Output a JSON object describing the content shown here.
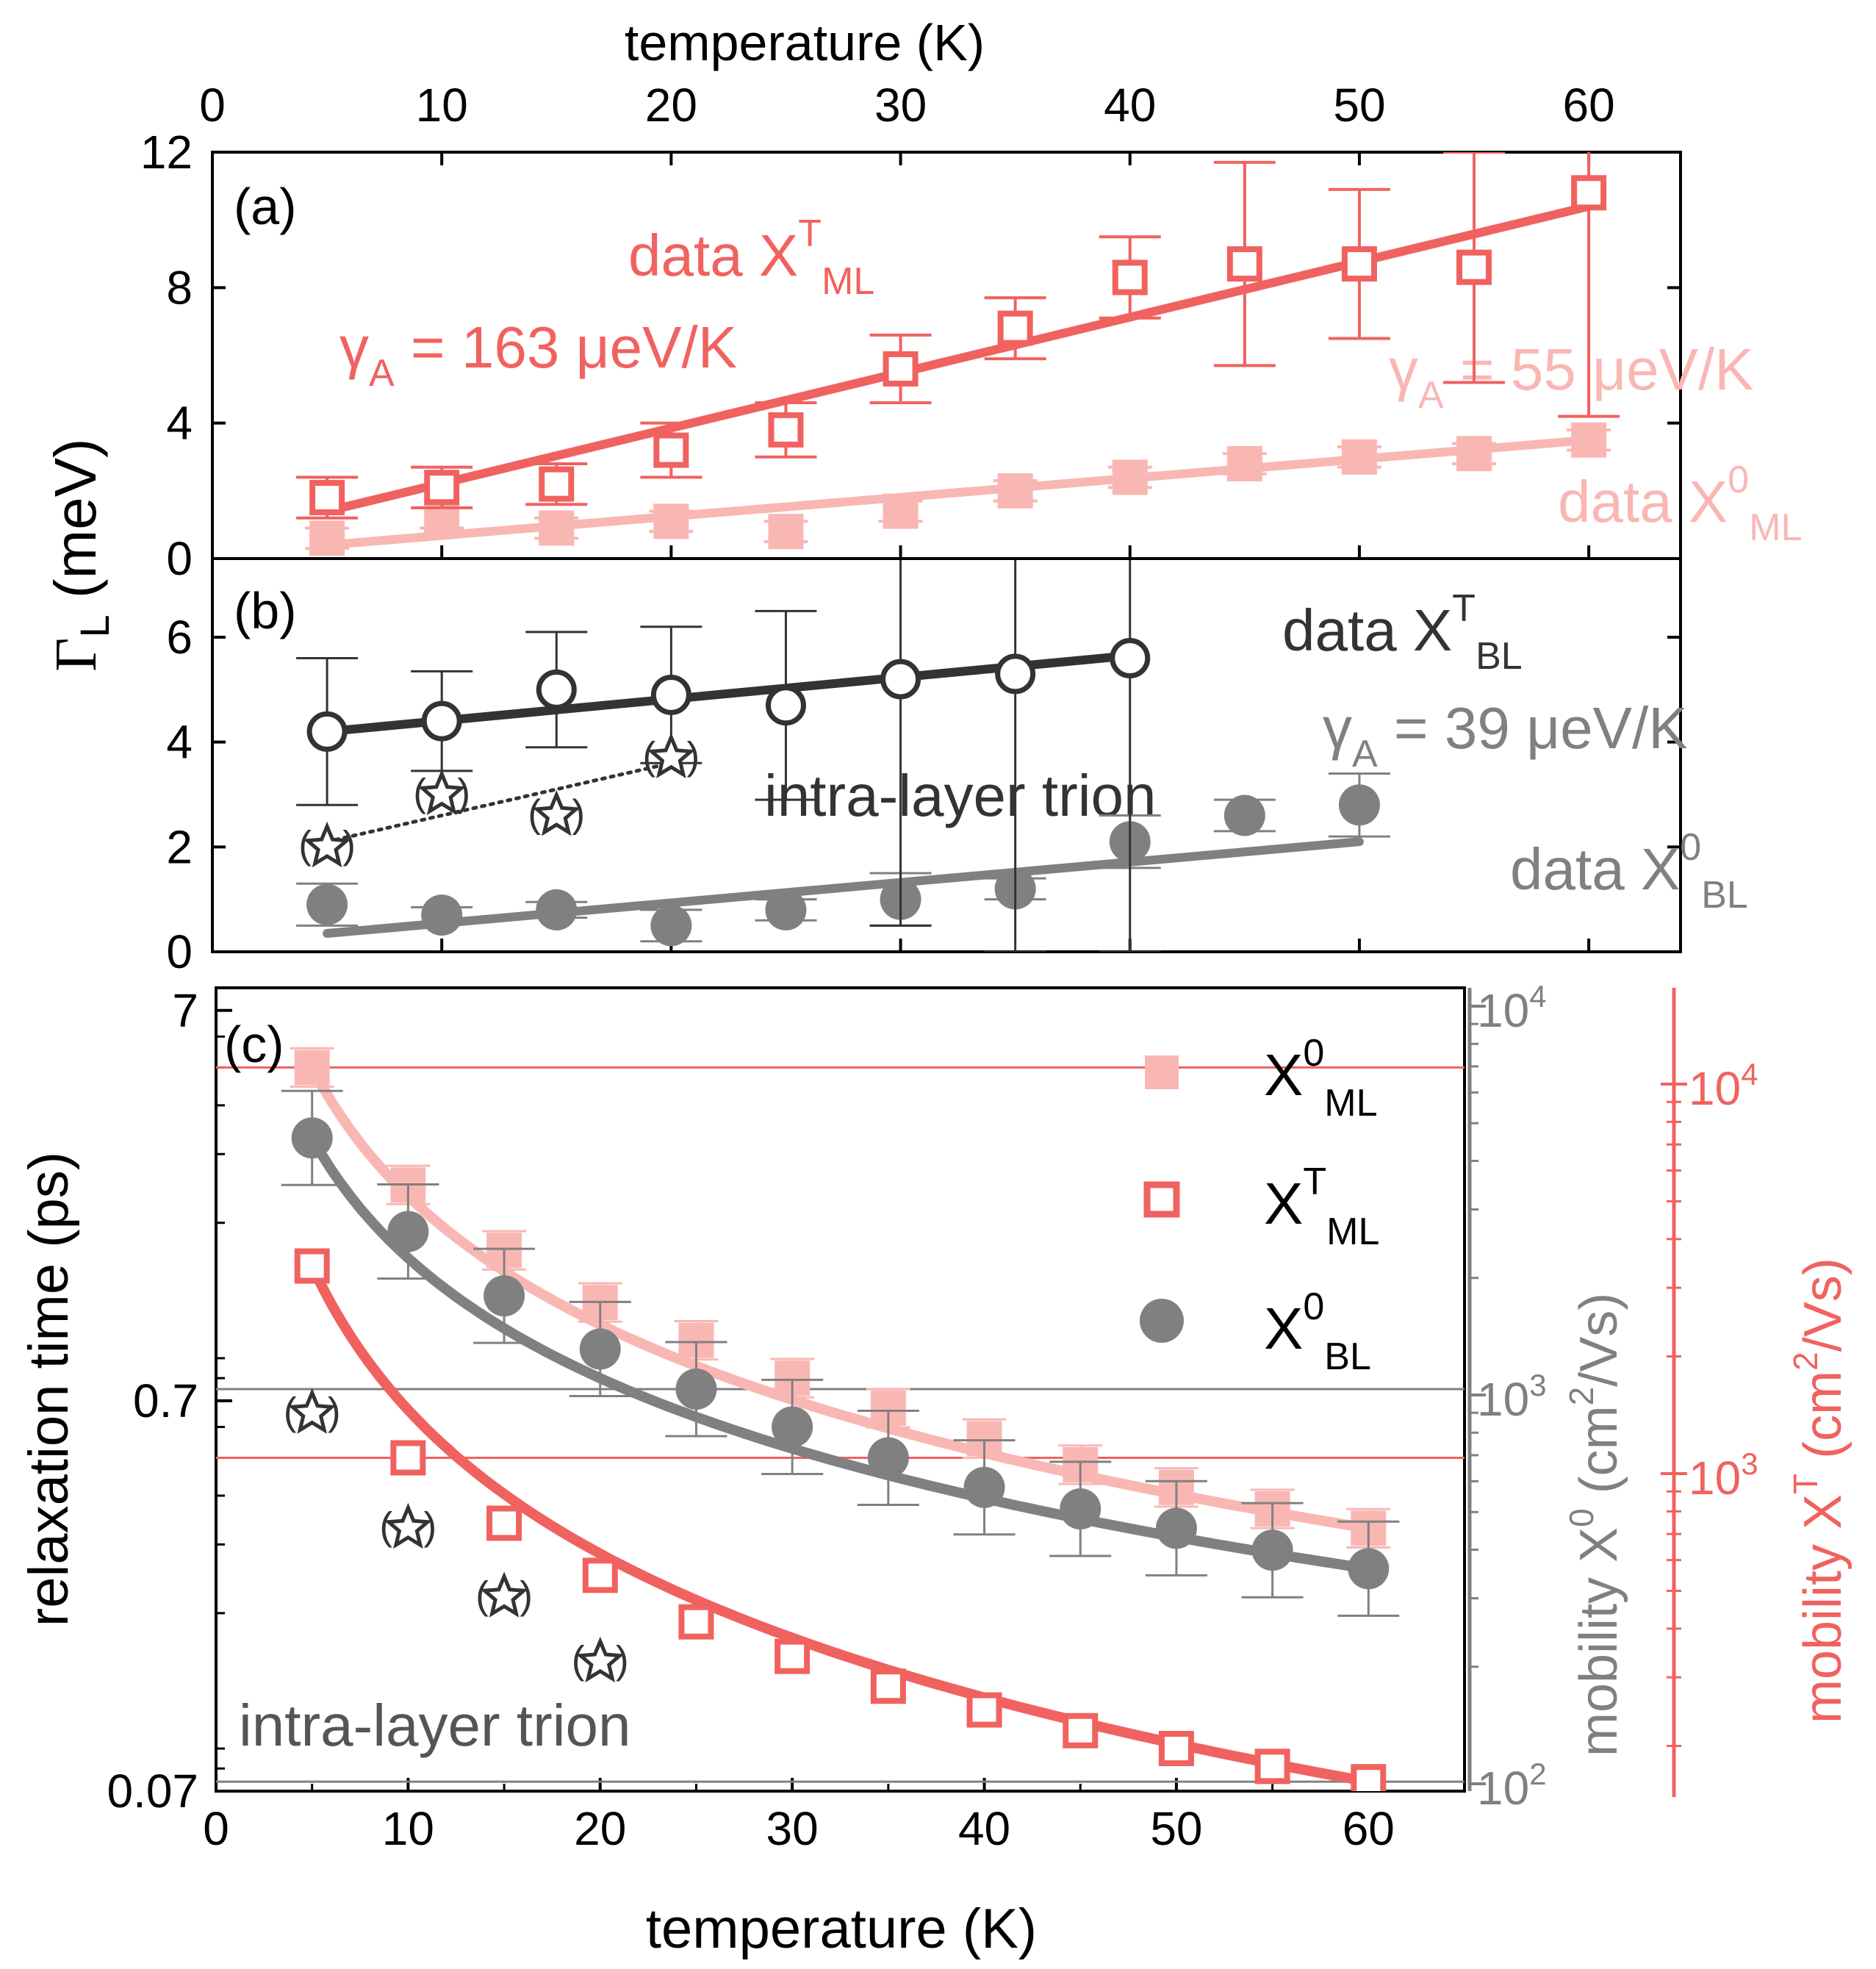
{
  "colors": {
    "ml_trion": "#f0625f",
    "ml_exciton": "#f9b7b4",
    "bl_trion": "#333333",
    "bl_exciton": "#808080",
    "axis": "#000000"
  },
  "chart_data": [
    {
      "panel": "(a)",
      "type": "scatter",
      "xlabel": "temperature (K)",
      "xlim": [
        0,
        64
      ],
      "xticks": [
        "0",
        "10",
        "20",
        "30",
        "40",
        "50",
        "60"
      ],
      "ylabel_shared": "ΓL (meV)",
      "ylim": [
        0,
        12
      ],
      "yticks": [
        "0",
        "4",
        "8",
        "12"
      ],
      "annotations": {
        "trion_label": "data XTML",
        "trion_slope": "γA = 163 μeV/K",
        "exciton_slope": "γA = 55 μeV/K",
        "exciton_label": "data X0ML"
      },
      "series": [
        {
          "name": "data X^T_ML",
          "marker": "open-square",
          "x": [
            5,
            10,
            15,
            20,
            25,
            30,
            35,
            40,
            45,
            50,
            55,
            60
          ],
          "y": [
            1.8,
            2.1,
            2.2,
            3.2,
            3.8,
            5.6,
            6.8,
            8.3,
            8.7,
            8.7,
            8.6,
            10.8
          ],
          "err": [
            0.6,
            0.6,
            0.6,
            0.8,
            0.8,
            1.0,
            0.9,
            1.2,
            3.0,
            2.2,
            3.4,
            6.6
          ]
        },
        {
          "name": "data X^0_ML",
          "marker": "filled-square",
          "x": [
            5,
            10,
            15,
            20,
            25,
            30,
            35,
            40,
            45,
            50,
            55,
            60
          ],
          "y": [
            0.6,
            1.2,
            0.9,
            1.1,
            0.8,
            1.4,
            2.0,
            2.4,
            2.8,
            3.0,
            3.1,
            3.5
          ],
          "err": [
            0.3,
            0.3,
            0.3,
            0.3,
            0.3,
            0.3,
            0.3,
            0.3,
            0.3,
            0.3,
            0.3,
            0.3
          ]
        }
      ],
      "fits": [
        {
          "name": "fit X^T_ML",
          "x": [
            5,
            60
          ],
          "y": [
            1.4,
            10.4
          ]
        },
        {
          "name": "fit X^0_ML",
          "x": [
            5,
            60
          ],
          "y": [
            0.4,
            3.5
          ]
        }
      ]
    },
    {
      "panel": "(b)",
      "type": "scatter",
      "xlim": [
        0,
        64
      ],
      "ylim": [
        0,
        7.5
      ],
      "yticks": [
        "0",
        "2",
        "4",
        "6"
      ],
      "annotations": {
        "trion_label": "data XTBL",
        "exciton_slope": "γA = 39 μeV/K",
        "intra_trion": "intra-layer trion",
        "exciton_label": "data X0BL",
        "paren_marker": "( )"
      },
      "series": [
        {
          "name": "data X^T_BL",
          "marker": "open-circle",
          "x": [
            5,
            10,
            15,
            20,
            25,
            30,
            35,
            40
          ],
          "y": [
            4.2,
            4.4,
            5.0,
            4.9,
            4.7,
            5.2,
            5.3,
            5.6
          ],
          "err_up": [
            1.4,
            0.95,
            1.1,
            1.3,
            1.8,
            2.5,
            2.5,
            2.5
          ],
          "err_down": [
            1.4,
            0.95,
            1.1,
            1.3,
            1.8,
            4.7,
            5.3,
            5.6
          ]
        },
        {
          "name": "data X^0_BL",
          "marker": "filled-circle",
          "x": [
            5,
            10,
            15,
            20,
            25,
            30,
            35,
            40,
            45,
            50
          ],
          "y": [
            0.9,
            0.7,
            0.8,
            0.5,
            0.8,
            1.0,
            1.2,
            2.1,
            2.6,
            2.8
          ],
          "err": [
            0.4,
            0.15,
            0.15,
            0.3,
            0.2,
            0.5,
            0.2,
            0.5,
            0.3,
            0.6
          ]
        },
        {
          "name": "intra-layer trion",
          "marker": "open-star",
          "x": [
            5,
            10,
            15,
            20
          ],
          "y": [
            2.0,
            3.0,
            2.6,
            3.7
          ]
        }
      ],
      "fits": [
        {
          "name": "fit X^T_BL",
          "x": [
            5,
            40
          ],
          "y": [
            4.2,
            5.65
          ]
        },
        {
          "name": "fit X^0_BL",
          "x": [
            5,
            50
          ],
          "y": [
            0.35,
            2.1
          ]
        },
        {
          "name": "trend intra-layer trion",
          "x": [
            5,
            20
          ],
          "y": [
            2.1,
            3.6
          ],
          "style": "dotted"
        }
      ]
    },
    {
      "panel": "(c)",
      "type": "scatter",
      "xlabel": "temperature (K)",
      "xlim": [
        0,
        65
      ],
      "xticks": [
        "0",
        "10",
        "20",
        "30",
        "40",
        "50",
        "60"
      ],
      "ylabel": "relaxation time (ps)",
      "yscale": "log",
      "ylim": [
        0.07,
        8
      ],
      "yticks": [
        "0.07",
        "0.7",
        "7"
      ],
      "right_axis_1": {
        "label": "mobility X0 (cm2/Vs)",
        "ticks": [
          "102",
          "103",
          "104"
        ]
      },
      "right_axis_2": {
        "label": "mobility XT (cm2/Vs)",
        "ticks": [
          "103",
          "104"
        ]
      },
      "annotations": {
        "intra_trion": "intra-layer trion",
        "paren_marker": "( )"
      },
      "legend": [
        "X0ML",
        "XTML",
        "X0BL"
      ],
      "legend_position": "top-right",
      "series": [
        {
          "name": "X^0_ML",
          "marker": "filled-square",
          "x": [
            5,
            10,
            15,
            20,
            25,
            30,
            35,
            40,
            45,
            50,
            55,
            60
          ],
          "y": [
            5.0,
            2.5,
            1.7,
            1.25,
            1.0,
            0.8,
            0.67,
            0.56,
            0.48,
            0.42,
            0.37,
            0.33
          ]
        },
        {
          "name": "X^T_ML",
          "marker": "open-square",
          "x": [
            5,
            10,
            15,
            20,
            25,
            30,
            35,
            40,
            45,
            50,
            55,
            60
          ],
          "y": [
            1.55,
            0.5,
            0.34,
            0.25,
            0.19,
            0.155,
            0.13,
            0.113,
            0.1,
            0.09,
            0.081,
            0.074
          ]
        },
        {
          "name": "X^0_BL",
          "marker": "filled-circle",
          "x": [
            5,
            10,
            15,
            20,
            25,
            30,
            35,
            40,
            45,
            50,
            55,
            60
          ],
          "y": [
            3.3,
            1.9,
            1.3,
            0.95,
            0.75,
            0.6,
            0.5,
            0.42,
            0.37,
            0.33,
            0.29,
            0.26
          ],
          "err_frac": 0.32
        },
        {
          "name": "intra-layer trion",
          "marker": "open-star",
          "x": [
            5,
            10,
            15,
            20
          ],
          "y": [
            0.65,
            0.33,
            0.22,
            0.15
          ]
        }
      ],
      "h_lines": [
        {
          "color": "ml",
          "y": 5.0
        },
        {
          "color": "bl",
          "y": 0.75
        },
        {
          "color": "ml",
          "y": 0.5
        },
        {
          "color": "bl",
          "y": 0.074
        }
      ]
    }
  ]
}
